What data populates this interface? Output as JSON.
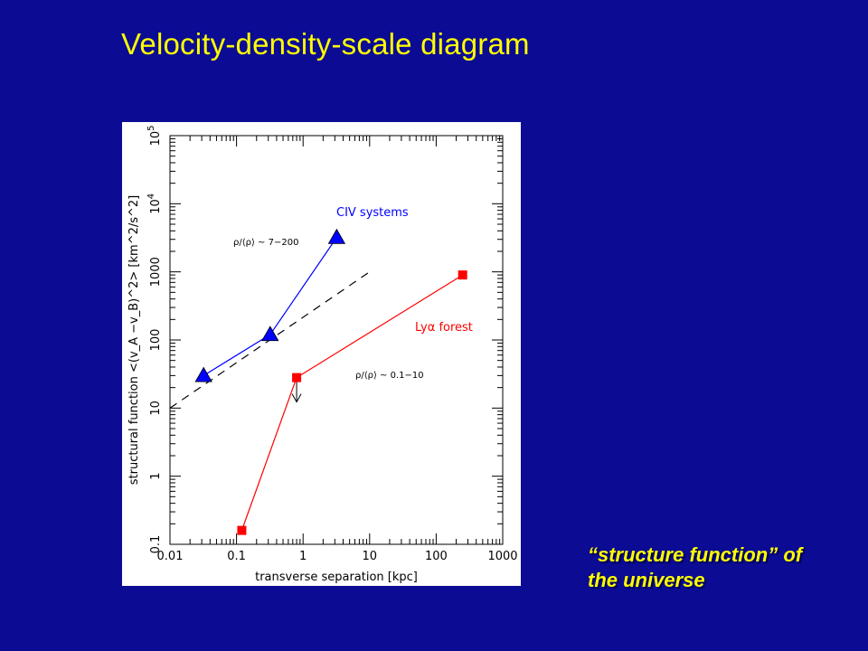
{
  "slide": {
    "title": "Velocity-density-scale diagram",
    "caption_line1": "“structure function” of",
    "caption_line2": "the universe",
    "colors": {
      "background": "#0b0b93",
      "title": "#ffff00",
      "civ": "#0000ff",
      "lya": "#ff0000"
    }
  },
  "chart_data": {
    "type": "line",
    "xscale": "log",
    "yscale": "log",
    "xlim": [
      0.01,
      1000
    ],
    "ylim": [
      0.1,
      100000
    ],
    "xlabel": "transverse separation [kpc]",
    "ylabel": "structural function <(v_A −v_B)^2> [km^2/s^2]",
    "xticks": [
      "0.01",
      "0.1",
      "1",
      "10",
      "100",
      "1000"
    ],
    "yticks": [
      "0.1",
      "1",
      "10",
      "100",
      "1000",
      "10^4",
      "10^5"
    ],
    "series": [
      {
        "name": "CIV systems",
        "marker": "triangle",
        "color": "#0000ff",
        "x": [
          0.032,
          0.32,
          3.2
        ],
        "y": [
          30,
          120,
          3200
        ]
      },
      {
        "name": "Lyα forest",
        "marker": "square",
        "color": "#ff0000",
        "x": [
          0.12,
          0.8,
          250
        ],
        "y": [
          0.16,
          28,
          900
        ],
        "upper_limit_index": 1
      }
    ],
    "reference_line": {
      "style": "dashed",
      "color": "#000000",
      "x": [
        0.01,
        10
      ],
      "y": [
        10,
        1000
      ]
    },
    "annotations": [
      {
        "text": "ρ/⟨ρ⟩ ~ 7−200",
        "near_series": "CIV systems"
      },
      {
        "text": "ρ/⟨ρ⟩ ~ 0.1−10",
        "near_series": "Lyα forest"
      }
    ]
  }
}
